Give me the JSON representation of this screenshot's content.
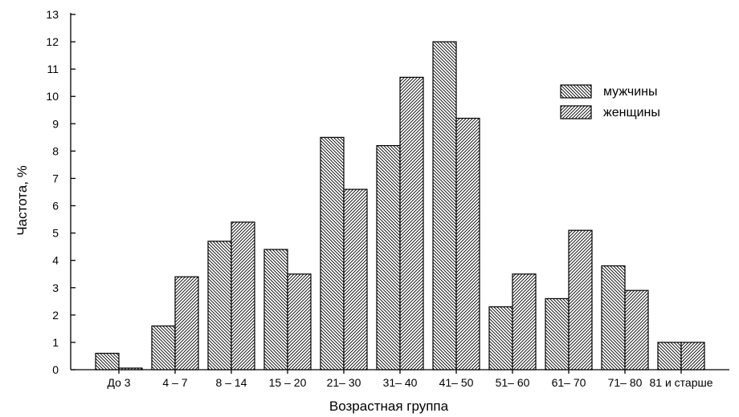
{
  "chart_data": {
    "type": "bar",
    "title": "",
    "xlabel": "Возрастная группа",
    "ylabel": "Частота, %",
    "ylim": [
      0,
      13
    ],
    "yticks": [
      0,
      1,
      2,
      3,
      4,
      5,
      6,
      7,
      8,
      9,
      10,
      11,
      12,
      13
    ],
    "grid": false,
    "legend_position": "top-right",
    "categories": [
      "До 3",
      "4 – 7",
      "8 – 14",
      "15 – 20",
      "21– 30",
      "31– 40",
      "41– 50",
      "51– 60",
      "61– 70",
      "71– 80",
      "81 и старше"
    ],
    "series": [
      {
        "name": "мужчины",
        "hatch": "back-diagonal",
        "values": [
          0.6,
          1.6,
          4.7,
          4.4,
          8.5,
          8.2,
          12.0,
          2.3,
          2.6,
          3.8,
          1.0
        ]
      },
      {
        "name": "женщины",
        "hatch": "forward-diagonal",
        "values": [
          0.05,
          3.4,
          5.4,
          3.5,
          6.6,
          10.7,
          9.2,
          3.5,
          5.1,
          2.9,
          1.0
        ]
      }
    ],
    "colors": {
      "bar_fill": "#ffffff",
      "hatch": "#000000",
      "axis": "#000000"
    }
  }
}
